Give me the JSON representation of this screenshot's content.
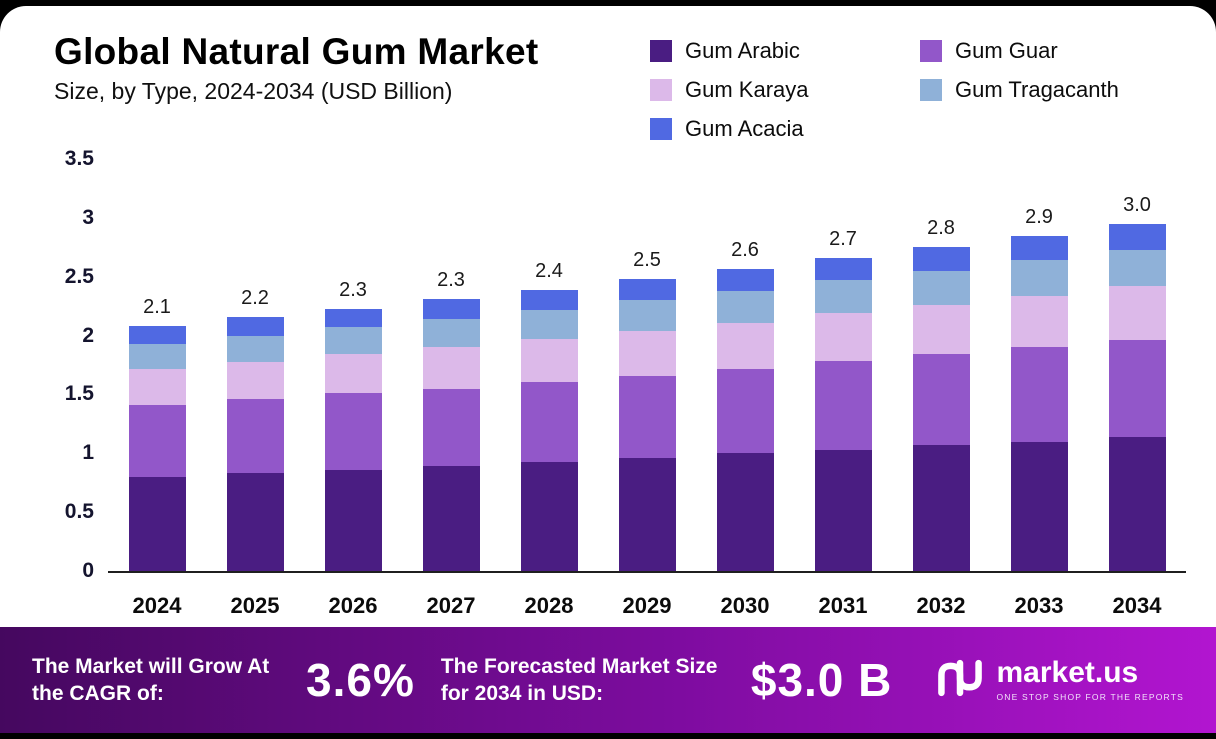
{
  "chart_data": {
    "type": "bar",
    "stacked": true,
    "title": "Global Natural Gum Market",
    "subtitle": "Size, by Type, 2024-2034 (USD Billion)",
    "categories": [
      "2024",
      "2025",
      "2026",
      "2027",
      "2028",
      "2029",
      "2030",
      "2031",
      "2032",
      "2033",
      "2034"
    ],
    "series": [
      {
        "name": "Gum Arabic",
        "color": "#4a1d82",
        "values": [
          0.8,
          0.83,
          0.86,
          0.89,
          0.93,
          0.96,
          1.0,
          1.03,
          1.07,
          1.1,
          1.14
        ]
      },
      {
        "name": "Gum Guar",
        "color": "#9257c9",
        "values": [
          0.61,
          0.63,
          0.65,
          0.66,
          0.68,
          0.7,
          0.72,
          0.75,
          0.77,
          0.8,
          0.82
        ]
      },
      {
        "name": "Gum Karaya",
        "color": "#dcb9e9",
        "values": [
          0.31,
          0.32,
          0.33,
          0.35,
          0.36,
          0.38,
          0.39,
          0.41,
          0.42,
          0.44,
          0.46
        ]
      },
      {
        "name": "Gum Tragacanth",
        "color": "#8fb1d8",
        "values": [
          0.21,
          0.22,
          0.23,
          0.24,
          0.25,
          0.26,
          0.27,
          0.28,
          0.29,
          0.3,
          0.31
        ]
      },
      {
        "name": "Gum Acacia",
        "color": "#5069e2",
        "values": [
          0.15,
          0.16,
          0.16,
          0.17,
          0.17,
          0.18,
          0.19,
          0.19,
          0.2,
          0.21,
          0.22
        ]
      }
    ],
    "totals": [
      2.1,
      2.2,
      2.3,
      2.3,
      2.4,
      2.5,
      2.6,
      2.7,
      2.8,
      2.9,
      3.0
    ],
    "total_labels": [
      "2.1",
      "2.2",
      "2.3",
      "2.3",
      "2.4",
      "2.5",
      "2.6",
      "2.7",
      "2.8",
      "2.9",
      "3.0"
    ],
    "ylim": [
      0,
      3.5
    ],
    "yticks": [
      3.5,
      3,
      2.5,
      2,
      1.5,
      1,
      0.5,
      0
    ],
    "ytick_labels": [
      "3.5",
      "3",
      "2.5",
      "2",
      "1.5",
      "1",
      "0.5",
      "0"
    ],
    "grid": false,
    "legend_position": "top-right"
  },
  "footer": {
    "cagr_label": "The Market will Grow At the CAGR of:",
    "cagr_value": "3.6%",
    "forecast_label": "The Forecasted Market Size for 2034 in USD:",
    "forecast_value": "$3.0 B",
    "brand": "market.us",
    "brand_tagline": "ONE STOP SHOP FOR THE REPORTS"
  },
  "colors": {
    "banner_gradient_start": "#45085f",
    "banner_gradient_mid": "#7d0c9f",
    "banner_gradient_end": "#b215d0",
    "axis_text": "#14142e"
  }
}
